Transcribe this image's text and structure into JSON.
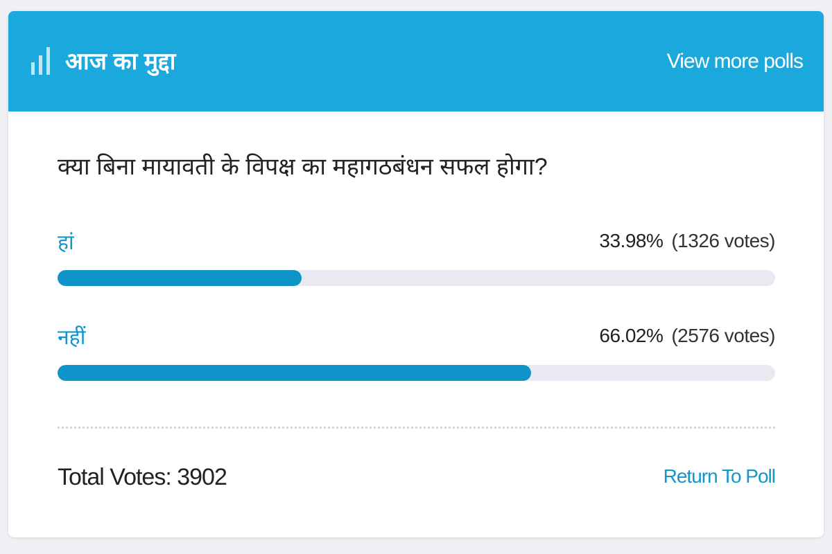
{
  "header": {
    "title": "आज का मुद्दा",
    "link": "View more polls"
  },
  "poll": {
    "question": "क्या बिना मायावती के विपक्ष का महागठबंधन सफल होगा?",
    "options": [
      {
        "label": "हां",
        "percent": 33.98,
        "percent_label": "33.98%",
        "votes_label": "(1326 votes)"
      },
      {
        "label": "नहीं",
        "percent": 66.02,
        "percent_label": "66.02%",
        "votes_label": "(2576 votes)"
      }
    ],
    "total_votes_label": "Total Votes:",
    "total_votes": 3902,
    "return_link": "Return To Poll"
  }
}
